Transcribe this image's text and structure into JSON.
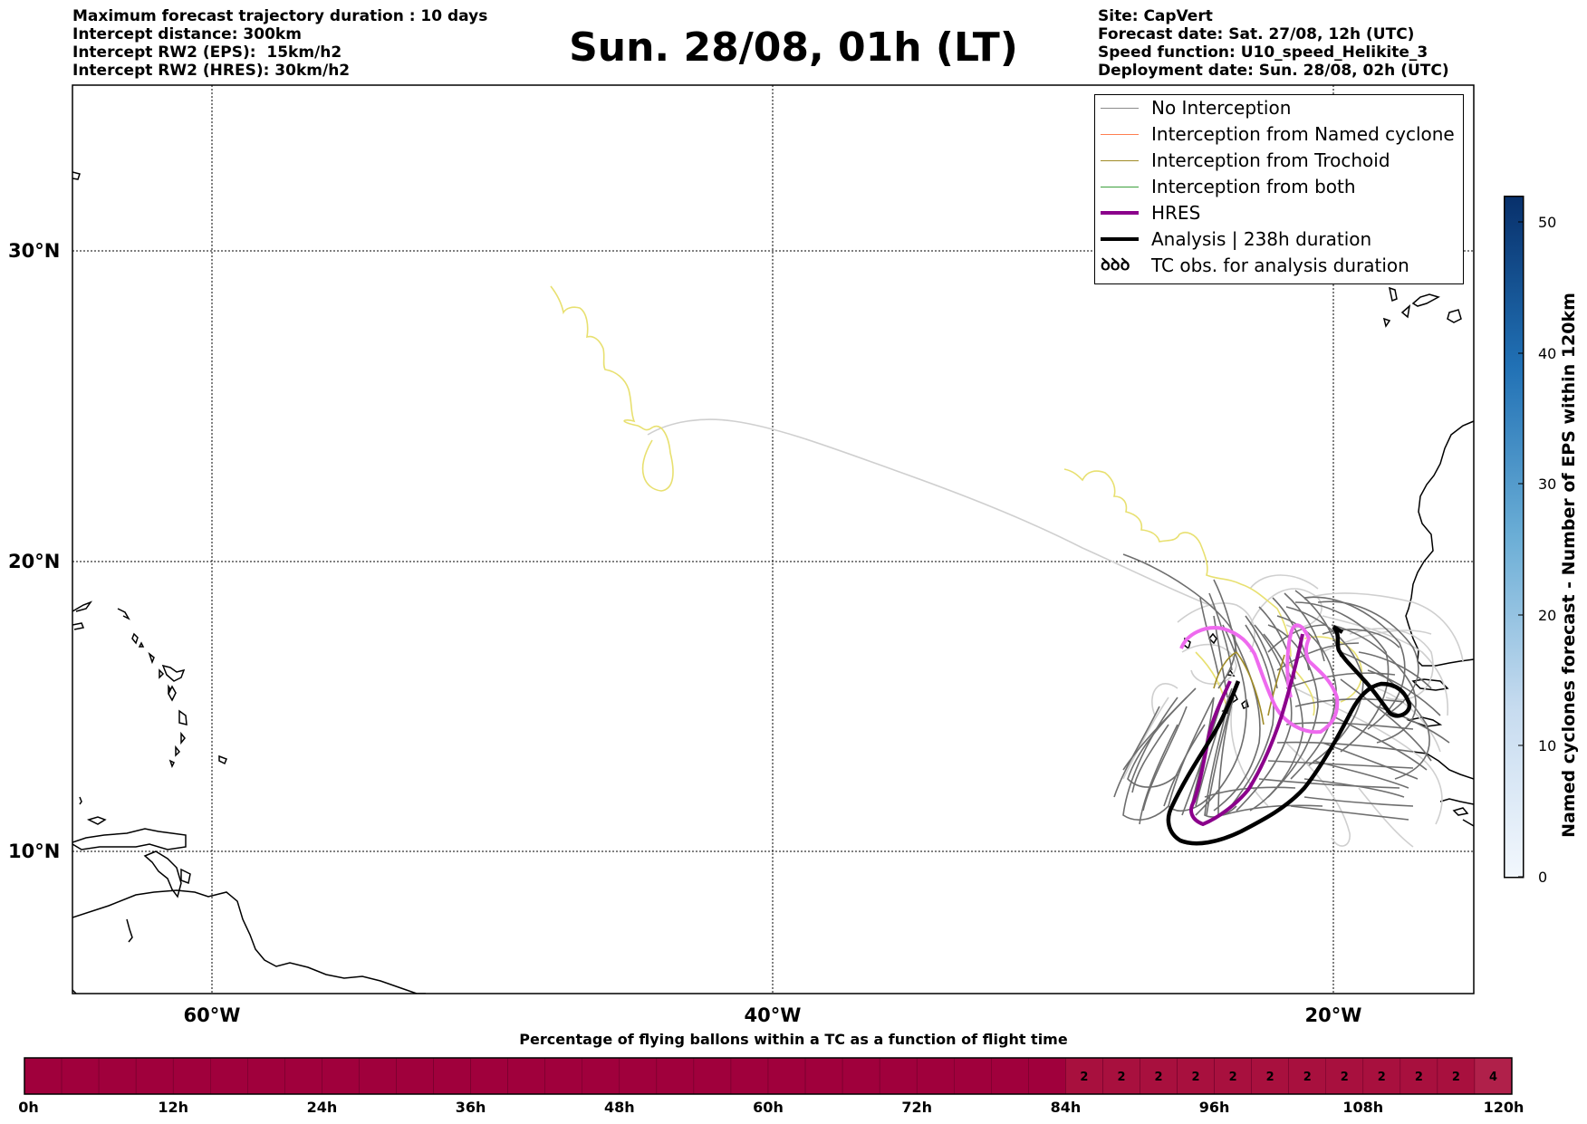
{
  "header": {
    "left_lines": [
      "Maximum forecast trajectory duration : 10 days",
      "Intercept distance: 300km",
      "Intercept RW2 (EPS):  15km/h2",
      "Intercept RW2 (HRES): 30km/h2"
    ],
    "title": "Sun. 28/08, 01h (LT)",
    "right_lines": [
      "Site: CapVert",
      "Forecast date: Sat. 27/08, 12h (UTC)",
      "Speed function: U10_speed_Helikite_3",
      "Deployment date: Sun. 28/08, 02h (UTC)"
    ]
  },
  "map": {
    "lat_labels": [
      "30°N",
      "20°N",
      "10°N"
    ],
    "lon_labels": [
      "60°W",
      "40°W",
      "20°W"
    ],
    "colors": {
      "no_interception": "#8c8c8c",
      "named_cyclone": "#ff7f50",
      "trochoid": "#a08c28",
      "both": "#3ca03c",
      "hres": "#8b008b",
      "hres_light": "#ee6aee",
      "analysis": "#000000",
      "yellow_track": "#e8e070",
      "light_track": "#cfcfcf"
    }
  },
  "legend": {
    "items": [
      {
        "label": "No Interception",
        "icon": "gray-line"
      },
      {
        "label": "Interception from Named cyclone",
        "icon": "coral-line"
      },
      {
        "label": "Interception from Trochoid",
        "icon": "olive-line"
      },
      {
        "label": "Interception from both",
        "icon": "green-line"
      },
      {
        "label": "HRES",
        "icon": "purple-thick-line"
      },
      {
        "label": "Analysis | 238h duration",
        "icon": "black-thick-line"
      },
      {
        "label": "TC obs. for analysis duration",
        "icon": "cyclone-symbols",
        "symbol": "ꝺꝺꝺ"
      }
    ]
  },
  "colorbar": {
    "label": "Named cyclones forecast - Number of EPS within 120km",
    "ticks": [
      "0",
      "10",
      "20",
      "30",
      "40",
      "50"
    ],
    "min": 0,
    "max": 52
  },
  "timebar": {
    "title": "Percentage of flying ballons within a TC as a function of flight time",
    "labels": [
      "0h",
      "12h",
      "24h",
      "36h",
      "48h",
      "60h",
      "72h",
      "84h",
      "96h",
      "108h",
      "120h"
    ],
    "cells": [
      0,
      0,
      0,
      0,
      0,
      0,
      0,
      0,
      0,
      0,
      0,
      0,
      0,
      0,
      0,
      0,
      0,
      0,
      0,
      0,
      0,
      0,
      0,
      0,
      0,
      0,
      0,
      0,
      2,
      2,
      2,
      2,
      2,
      2,
      2,
      2,
      2,
      2,
      2,
      4
    ],
    "base_color": "#a0003c",
    "alt_color": "#a8103e",
    "last_color": "#b0204a"
  }
}
